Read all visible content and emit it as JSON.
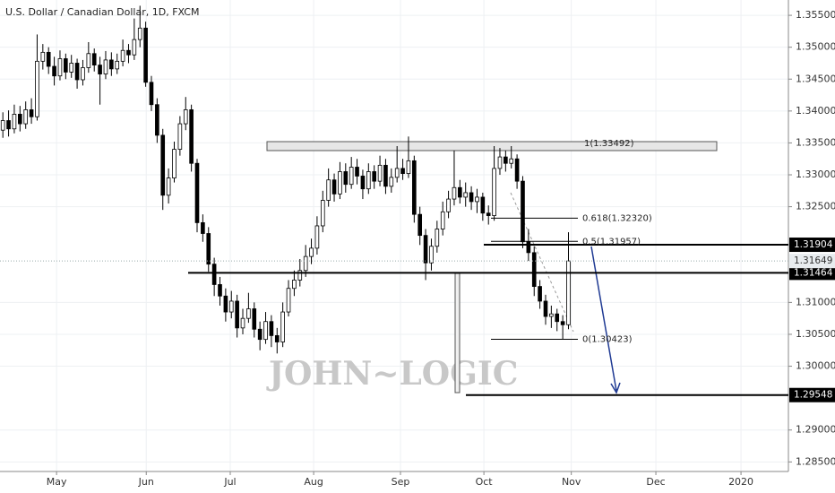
{
  "chart_data": {
    "type": "candlestick",
    "title": "U.S. Dollar / Canadian Dollar, 1D, FXCM",
    "watermark": "JOHN~LOGIC",
    "xlim": [
      -0.5,
      137.5
    ],
    "ylim": [
      1.2835,
      1.3574
    ],
    "xticks": [
      {
        "value": 9.4,
        "label": "May"
      },
      {
        "value": 25.1,
        "label": "Jun"
      },
      {
        "value": 39.8,
        "label": "Jul"
      },
      {
        "value": 54.4,
        "label": "Aug"
      },
      {
        "value": 69.6,
        "label": "Sep"
      },
      {
        "value": 84.2,
        "label": "Oct"
      },
      {
        "value": 99.5,
        "label": "Nov"
      },
      {
        "value": 114.3,
        "label": "Dec"
      },
      {
        "value": 129.2,
        "label": "2020"
      }
    ],
    "yticks": [
      {
        "value": 1.355,
        "label": "1.35500"
      },
      {
        "value": 1.35,
        "label": "1.35000"
      },
      {
        "value": 1.345,
        "label": "1.34500"
      },
      {
        "value": 1.34,
        "label": "1.34000"
      },
      {
        "value": 1.335,
        "label": "1.33500"
      },
      {
        "value": 1.33,
        "label": "1.33000"
      },
      {
        "value": 1.325,
        "label": "1.32500"
      },
      {
        "value": 1.31,
        "label": "1.31000"
      },
      {
        "value": 1.305,
        "label": "1.30500"
      },
      {
        "value": 1.3,
        "label": "1.30000"
      },
      {
        "value": 1.29,
        "label": "1.29000"
      },
      {
        "value": 1.285,
        "label": "1.28500"
      }
    ],
    "grid": true,
    "up_color": "#ffffff",
    "down_color": "#000000",
    "open": [
      1.337,
      1.3385,
      1.3372,
      1.3395,
      1.338,
      1.3402,
      1.3391,
      1.3478,
      1.3492,
      1.347,
      1.3455,
      1.3482,
      1.3461,
      1.3475,
      1.3449,
      1.3468,
      1.349,
      1.3472,
      1.3458,
      1.348,
      1.3466,
      1.3478,
      1.3495,
      1.3488,
      1.3512,
      1.353,
      1.3445,
      1.341,
      1.3362,
      1.3268,
      1.3295,
      1.334,
      1.338,
      1.3402,
      1.3318,
      1.3225,
      1.3208,
      1.316,
      1.3128,
      1.311,
      1.3085,
      1.3102,
      1.306,
      1.3075,
      1.309,
      1.3058,
      1.3042,
      1.307,
      1.3048,
      1.3038,
      1.3085,
      1.3122,
      1.3135,
      1.315,
      1.3172,
      1.3185,
      1.322,
      1.326,
      1.3292,
      1.327,
      1.3305,
      1.3285,
      1.3312,
      1.3298,
      1.3278,
      1.3305,
      1.329,
      1.3315,
      1.3282,
      1.3296,
      1.331,
      1.3302,
      1.3322,
      1.3238,
      1.3205,
      1.3162,
      1.3188,
      1.3215,
      1.3242,
      1.3262,
      1.328,
      1.3265,
      1.3272,
      1.3258,
      1.3265,
      1.324,
      1.3236,
      1.331,
      1.3328,
      1.3318,
      1.3325,
      1.329,
      1.3195,
      1.3178,
      1.3125,
      1.3102,
      1.3078,
      1.3082,
      1.307,
      1.3065
    ],
    "high": [
      1.3398,
      1.3401,
      1.341,
      1.3408,
      1.3415,
      1.342,
      1.352,
      1.3505,
      1.35,
      1.3485,
      1.3495,
      1.349,
      1.3488,
      1.3482,
      1.348,
      1.3508,
      1.3498,
      1.3485,
      1.3494,
      1.3492,
      1.349,
      1.3512,
      1.3505,
      1.3545,
      1.3565,
      1.354,
      1.3455,
      1.342,
      1.3372,
      1.331,
      1.3352,
      1.3392,
      1.3422,
      1.341,
      1.3325,
      1.3238,
      1.3218,
      1.317,
      1.314,
      1.3122,
      1.3118,
      1.3112,
      1.309,
      1.3115,
      1.31,
      1.307,
      1.3085,
      1.308,
      1.306,
      1.31,
      1.3135,
      1.315,
      1.3168,
      1.319,
      1.32,
      1.3235,
      1.3275,
      1.331,
      1.3302,
      1.332,
      1.3318,
      1.3328,
      1.3325,
      1.3308,
      1.3318,
      1.3315,
      1.333,
      1.3325,
      1.331,
      1.3345,
      1.3325,
      1.336,
      1.333,
      1.325,
      1.3215,
      1.32,
      1.3228,
      1.3258,
      1.3275,
      1.3338,
      1.3292,
      1.3288,
      1.3282,
      1.3278,
      1.3272,
      1.3252,
      1.3345,
      1.3342,
      1.3338,
      1.3345,
      1.3332,
      1.3298,
      1.3215,
      1.3188,
      1.3135,
      1.3112,
      1.3095,
      1.309,
      1.308,
      1.321
    ],
    "low": [
      1.3358,
      1.336,
      1.3365,
      1.3368,
      1.3372,
      1.338,
      1.3385,
      1.3465,
      1.3458,
      1.344,
      1.3448,
      1.345,
      1.3452,
      1.3435,
      1.344,
      1.346,
      1.3462,
      1.341,
      1.345,
      1.3455,
      1.3458,
      1.347,
      1.3475,
      1.348,
      1.35,
      1.3438,
      1.34,
      1.335,
      1.3245,
      1.3255,
      1.3288,
      1.333,
      1.337,
      1.3305,
      1.321,
      1.3195,
      1.3148,
      1.311,
      1.3095,
      1.307,
      1.3075,
      1.3045,
      1.305,
      1.3068,
      1.3045,
      1.3025,
      1.3035,
      1.303,
      1.302,
      1.303,
      1.3078,
      1.311,
      1.3125,
      1.314,
      1.316,
      1.3175,
      1.321,
      1.325,
      1.3258,
      1.3262,
      1.3272,
      1.3278,
      1.3285,
      1.3262,
      1.327,
      1.3278,
      1.3282,
      1.327,
      1.3272,
      1.3288,
      1.3292,
      1.3295,
      1.3225,
      1.319,
      1.3135,
      1.315,
      1.3178,
      1.3205,
      1.3232,
      1.3252,
      1.3255,
      1.325,
      1.3245,
      1.324,
      1.3228,
      1.3222,
      1.3228,
      1.33,
      1.3305,
      1.331,
      1.3278,
      1.3185,
      1.3165,
      1.311,
      1.309,
      1.3065,
      1.306,
      1.3055,
      1.3042,
      1.3058
    ],
    "close": [
      1.3385,
      1.3372,
      1.3395,
      1.338,
      1.3402,
      1.3391,
      1.3478,
      1.3492,
      1.347,
      1.3455,
      1.3482,
      1.3461,
      1.3475,
      1.3449,
      1.3468,
      1.349,
      1.3472,
      1.3458,
      1.348,
      1.3466,
      1.3478,
      1.3495,
      1.3488,
      1.3512,
      1.353,
      1.3445,
      1.341,
      1.3362,
      1.3268,
      1.3295,
      1.334,
      1.338,
      1.3402,
      1.3318,
      1.3225,
      1.3208,
      1.316,
      1.3128,
      1.311,
      1.3085,
      1.3102,
      1.306,
      1.3075,
      1.309,
      1.3058,
      1.3042,
      1.307,
      1.3048,
      1.3038,
      1.3085,
      1.3122,
      1.3135,
      1.315,
      1.3172,
      1.3185,
      1.322,
      1.326,
      1.3292,
      1.327,
      1.3305,
      1.3285,
      1.3312,
      1.3298,
      1.3278,
      1.3305,
      1.329,
      1.3315,
      1.3282,
      1.3296,
      1.331,
      1.3302,
      1.3322,
      1.3238,
      1.3205,
      1.3162,
      1.3188,
      1.3215,
      1.3242,
      1.3262,
      1.328,
      1.3265,
      1.3272,
      1.3258,
      1.3265,
      1.324,
      1.3236,
      1.331,
      1.3328,
      1.3318,
      1.3325,
      1.329,
      1.3195,
      1.3178,
      1.3125,
      1.3102,
      1.3078,
      1.3082,
      1.307,
      1.3065,
      1.3165
    ],
    "levels": [
      1.31904,
      1.31464,
      1.29548
    ],
    "last_price": 1.31649,
    "fib": [
      {
        "value": 1.33492,
        "label": "1(1.33492)"
      },
      {
        "value": 1.3232,
        "label": "0.618(1.32320)"
      },
      {
        "value": 1.31957,
        "label": "0.5(1.31957)"
      },
      {
        "value": 1.30423,
        "label": "0(1.30423)"
      }
    ]
  }
}
